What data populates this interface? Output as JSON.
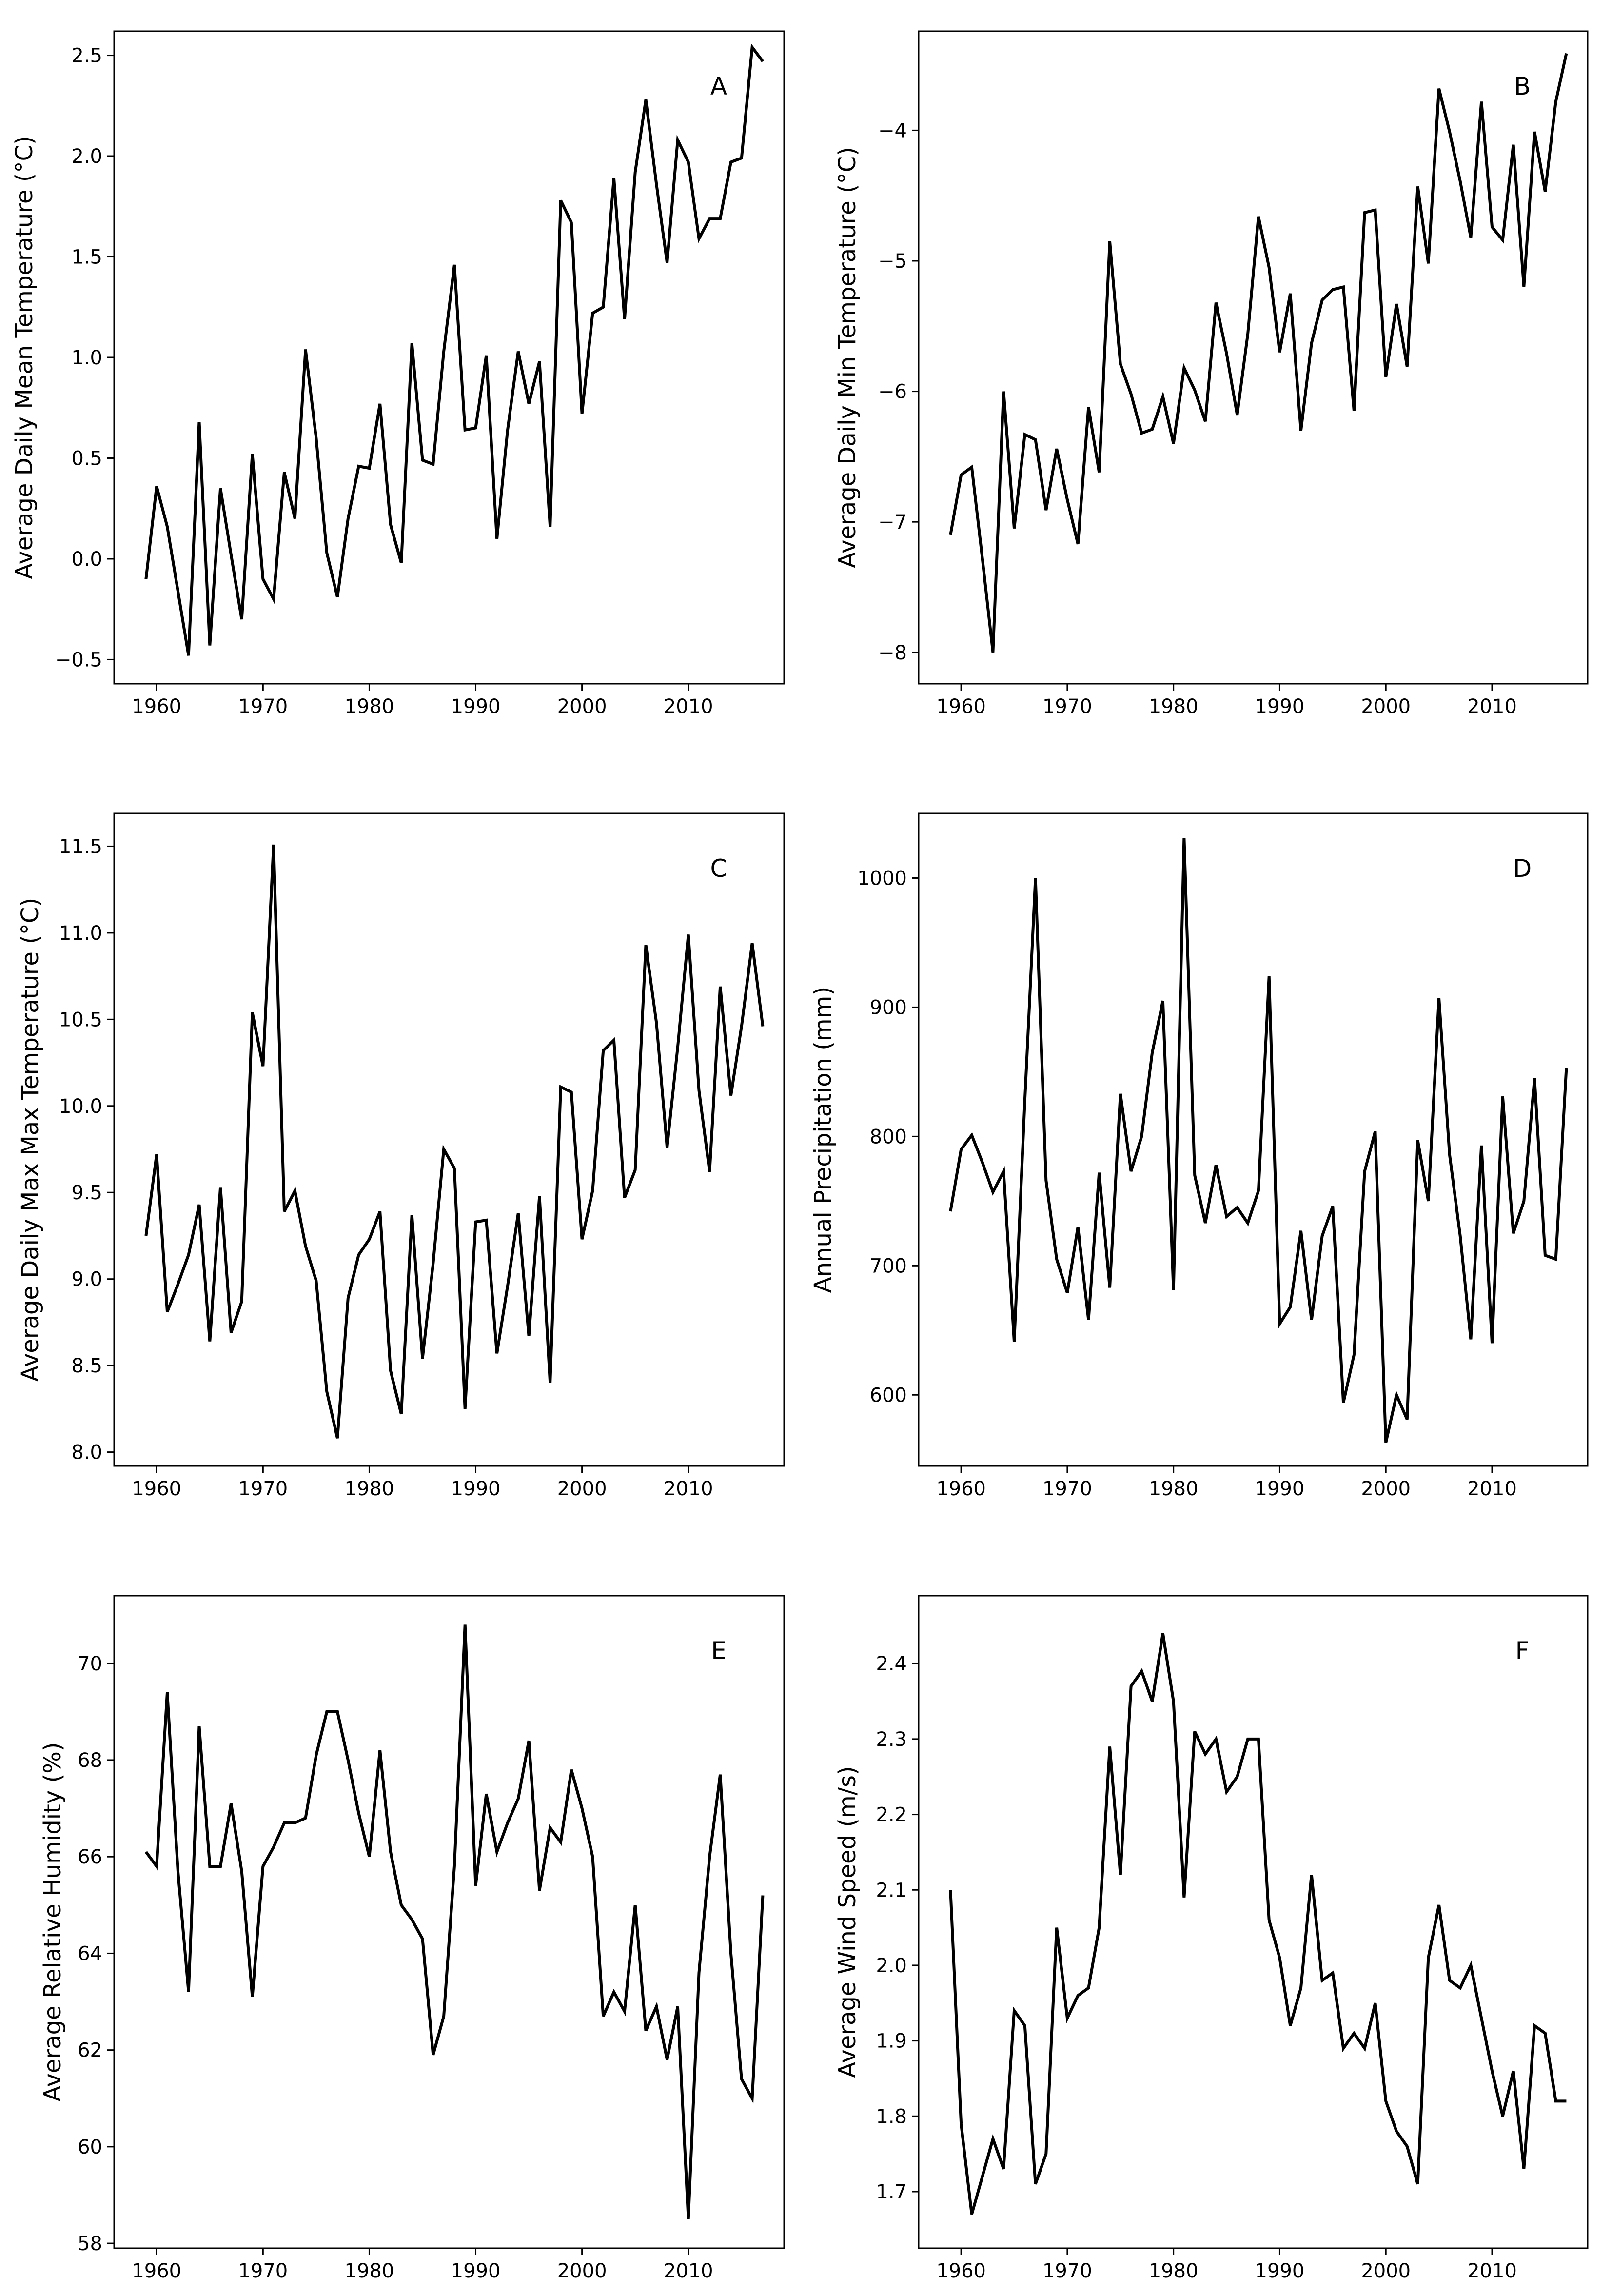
{
  "chart_data": [
    {
      "panel": "A",
      "type": "line",
      "title": "",
      "xlabel": "",
      "ylabel": "Average Daily Mean Temperature (°C)",
      "xlim": [
        1956,
        2019
      ],
      "ylim": [
        -0.62,
        2.62
      ],
      "xticks": [
        1960,
        1970,
        1980,
        1990,
        2000,
        2010
      ],
      "xtick_labels": [
        "1960",
        "1970",
        "1980",
        "1990",
        "2000",
        "2010"
      ],
      "yticks": [
        -0.5,
        0.0,
        0.5,
        1.0,
        1.5,
        2.0,
        2.5
      ],
      "ytick_labels": [
        "−0.5",
        "0.0",
        "0.5",
        "1.0",
        "1.5",
        "2.0",
        "2.5"
      ],
      "grid": false,
      "x_start": 1959,
      "values": [
        -0.1,
        0.36,
        0.16,
        -0.16,
        -0.48,
        0.68,
        -0.43,
        0.35,
        0.02,
        -0.3,
        0.52,
        -0.1,
        -0.2,
        0.43,
        0.2,
        1.04,
        0.6,
        0.03,
        -0.19,
        0.2,
        0.46,
        0.45,
        0.77,
        0.17,
        -0.02,
        1.07,
        0.49,
        0.47,
        1.03,
        1.46,
        0.64,
        0.65,
        1.01,
        0.1,
        0.64,
        1.03,
        0.77,
        0.98,
        0.16,
        1.78,
        1.67,
        0.72,
        1.22,
        1.25,
        1.89,
        1.19,
        1.92,
        2.28,
        1.86,
        1.47,
        2.08,
        1.97,
        1.59,
        1.69,
        1.69,
        1.97,
        1.99,
        2.54,
        2.47
      ]
    },
    {
      "panel": "B",
      "type": "line",
      "title": "",
      "xlabel": "",
      "ylabel": "Average Daily Min Temperature (°C)",
      "xlim": [
        1956,
        2019
      ],
      "ylim": [
        -8.24,
        -3.24
      ],
      "xticks": [
        1960,
        1970,
        1980,
        1990,
        2000,
        2010
      ],
      "xtick_labels": [
        "1960",
        "1970",
        "1980",
        "1990",
        "2000",
        "2010"
      ],
      "yticks": [
        -8,
        -7,
        -6,
        -5,
        -4
      ],
      "ytick_labels": [
        "−8",
        "−7",
        "−6",
        "−5",
        "−4"
      ],
      "grid": false,
      "x_start": 1959,
      "values": [
        -7.1,
        -6.64,
        -6.58,
        -7.28,
        -8.0,
        -6.0,
        -7.05,
        -6.33,
        -6.37,
        -6.91,
        -6.44,
        -6.83,
        -7.17,
        -6.12,
        -6.62,
        -4.85,
        -5.79,
        -6.02,
        -6.32,
        -6.29,
        -6.04,
        -6.4,
        -5.82,
        -5.99,
        -6.23,
        -5.32,
        -5.71,
        -6.18,
        -5.56,
        -4.66,
        -5.05,
        -5.7,
        -5.25,
        -6.3,
        -5.63,
        -5.3,
        -5.22,
        -5.2,
        -6.15,
        -4.63,
        -4.61,
        -5.89,
        -5.33,
        -5.81,
        -4.43,
        -5.02,
        -3.68,
        -4.01,
        -4.39,
        -4.82,
        -3.78,
        -4.74,
        -4.84,
        -4.11,
        -5.2,
        -4.01,
        -4.47,
        -3.78,
        -3.41
      ]
    },
    {
      "panel": "C",
      "type": "line",
      "title": "",
      "xlabel": "",
      "ylabel": "Average Daily Max Max Temperature (°C)",
      "xlim": [
        1956,
        2019
      ],
      "ylim": [
        7.92,
        11.69
      ],
      "xticks": [
        1960,
        1970,
        1980,
        1990,
        2000,
        2010
      ],
      "xtick_labels": [
        "1960",
        "1970",
        "1980",
        "1990",
        "2000",
        "2010"
      ],
      "yticks": [
        8.0,
        8.5,
        9.0,
        9.5,
        10.0,
        10.5,
        11.0,
        11.5
      ],
      "ytick_labels": [
        "8.0",
        "8.5",
        "9.0",
        "9.5",
        "10.0",
        "10.5",
        "11.0",
        "11.5"
      ],
      "grid": false,
      "x_start": 1959,
      "values": [
        9.25,
        9.72,
        8.81,
        8.97,
        9.14,
        9.43,
        8.64,
        9.53,
        8.69,
        8.87,
        10.54,
        10.23,
        11.51,
        9.39,
        9.51,
        9.19,
        8.99,
        8.35,
        8.08,
        8.89,
        9.14,
        9.23,
        9.39,
        8.47,
        8.22,
        9.37,
        8.54,
        9.09,
        9.75,
        9.64,
        8.25,
        9.33,
        9.34,
        8.57,
        8.96,
        9.38,
        8.67,
        9.48,
        8.4,
        10.11,
        10.08,
        9.23,
        9.51,
        10.32,
        10.38,
        9.47,
        9.63,
        10.93,
        10.48,
        9.76,
        10.34,
        10.99,
        10.09,
        9.62,
        10.69,
        10.06,
        10.46,
        10.94,
        10.46
      ]
    },
    {
      "panel": "D",
      "type": "line",
      "title": "",
      "xlabel": "",
      "ylabel": "Annual Precipitation (mm)",
      "xlim": [
        1956,
        2019
      ],
      "ylim": [
        545,
        1050
      ],
      "xticks": [
        1960,
        1970,
        1980,
        1990,
        2000,
        2010
      ],
      "xtick_labels": [
        "1960",
        "1970",
        "1980",
        "1990",
        "2000",
        "2010"
      ],
      "yticks": [
        600,
        700,
        800,
        900,
        1000
      ],
      "ytick_labels": [
        "600",
        "700",
        "800",
        "900",
        "1000"
      ],
      "grid": false,
      "x_start": 1959,
      "values": [
        742,
        790,
        801,
        780,
        757,
        773,
        641,
        828,
        1000,
        766,
        705,
        679,
        730,
        658,
        772,
        683,
        833,
        773,
        800,
        865,
        905,
        681,
        1031,
        770,
        733,
        778,
        738,
        745,
        733,
        758,
        924,
        655,
        668,
        727,
        658,
        723,
        746,
        594,
        631,
        773,
        804,
        563,
        600,
        581,
        797,
        750,
        907,
        786,
        723,
        643,
        793,
        640,
        831,
        725,
        750,
        845,
        708,
        705,
        853
      ]
    },
    {
      "panel": "E",
      "type": "line",
      "title": "",
      "xlabel": "",
      "ylabel": "Average Relative Humidity (%)",
      "xlim": [
        1956,
        2019
      ],
      "ylim": [
        57.9,
        71.4
      ],
      "xticks": [
        1960,
        1970,
        1980,
        1990,
        2000,
        2010
      ],
      "xtick_labels": [
        "1960",
        "1970",
        "1980",
        "1990",
        "2000",
        "2010"
      ],
      "yticks": [
        58,
        60,
        62,
        64,
        66,
        68,
        70
      ],
      "ytick_labels": [
        "58",
        "60",
        "62",
        "64",
        "66",
        "68",
        "70"
      ],
      "grid": false,
      "x_start": 1959,
      "values": [
        66.1,
        65.8,
        69.4,
        65.7,
        63.2,
        68.7,
        65.8,
        65.8,
        67.1,
        65.7,
        63.1,
        65.8,
        66.2,
        66.7,
        66.7,
        66.8,
        68.1,
        69.0,
        69.0,
        68.0,
        66.9,
        66.0,
        68.2,
        66.1,
        65.0,
        64.7,
        64.3,
        61.9,
        62.7,
        65.8,
        70.8,
        65.4,
        67.3,
        66.1,
        66.7,
        67.2,
        68.4,
        65.3,
        66.6,
        66.3,
        67.8,
        67.0,
        66.0,
        62.7,
        63.2,
        62.8,
        65.0,
        62.4,
        62.9,
        61.8,
        62.9,
        58.5,
        63.6,
        66.0,
        67.7,
        64.0,
        61.4,
        61.0,
        65.2
      ]
    },
    {
      "panel": "F",
      "type": "line",
      "title": "",
      "xlabel": "",
      "ylabel": "Average Wind Speed (m/s)",
      "xlim": [
        1956,
        2019
      ],
      "ylim": [
        1.625,
        2.49
      ],
      "xticks": [
        1960,
        1970,
        1980,
        1990,
        2000,
        2010
      ],
      "xtick_labels": [
        "1960",
        "1970",
        "1980",
        "1990",
        "2000",
        "2010"
      ],
      "yticks": [
        1.7,
        1.8,
        1.9,
        2.0,
        2.1,
        2.2,
        2.3,
        2.4
      ],
      "ytick_labels": [
        "1.7",
        "1.8",
        "1.9",
        "2.0",
        "2.1",
        "2.2",
        "2.3",
        "2.4"
      ],
      "grid": false,
      "x_start": 1959,
      "values": [
        2.1,
        1.79,
        1.67,
        1.72,
        1.77,
        1.73,
        1.94,
        1.92,
        1.71,
        1.75,
        2.05,
        1.93,
        1.96,
        1.97,
        2.05,
        2.29,
        2.12,
        2.37,
        2.39,
        2.35,
        2.44,
        2.35,
        2.09,
        2.31,
        2.28,
        2.3,
        2.23,
        2.25,
        2.3,
        2.3,
        2.06,
        2.01,
        1.92,
        1.97,
        2.12,
        1.98,
        1.99,
        1.89,
        1.91,
        1.89,
        1.95,
        1.82,
        1.78,
        1.76,
        1.71,
        2.01,
        2.08,
        1.98,
        1.97,
        2.0,
        1.93,
        1.86,
        1.8,
        1.86,
        1.73,
        1.92,
        1.91,
        1.82,
        1.82
      ]
    }
  ]
}
